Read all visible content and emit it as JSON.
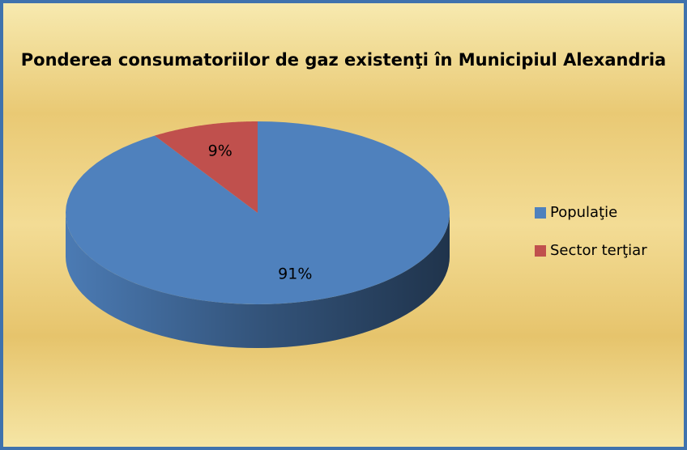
{
  "chart_data": {
    "type": "pie3d",
    "title": "Ponderea consumatoriilor de gaz existenţi în Municipiul Alexandria",
    "categories": [
      "Populaţie",
      "Sector terţiar"
    ],
    "values": [
      91,
      9
    ],
    "value_labels": [
      "91%",
      "9%"
    ],
    "colors": [
      "#4f81bd",
      "#c0504d"
    ],
    "legend": "right"
  }
}
